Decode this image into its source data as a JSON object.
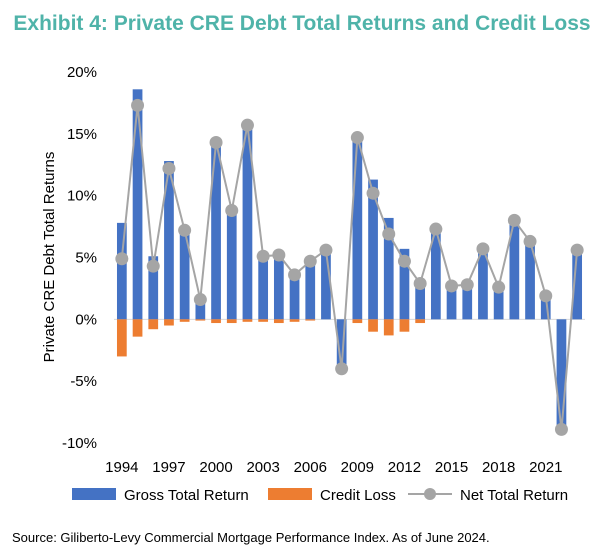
{
  "title": "Exhibit 4: Private CRE Debt Total Returns and Credit Loss",
  "source": "Source: Giliberto-Levy Commercial Mortgage Performance Index. As of June 2024.",
  "colors": {
    "gross": "#4472c4",
    "loss": "#ed7d31",
    "net": "#a5a5a5",
    "title": "#4fb3a9"
  },
  "chart_data": {
    "type": "bar",
    "title": "Exhibit 4: Private CRE Debt Total Returns and Credit Loss",
    "ylabel": "Private CRE Debt Total Returns",
    "xlabel": "",
    "ylim": [
      -10,
      20
    ],
    "yticks": [
      20,
      15,
      10,
      5,
      0,
      -5,
      -10
    ],
    "ytick_labels": [
      "20%",
      "15%",
      "10%",
      "5%",
      "0%",
      "-5%",
      "-10%"
    ],
    "xtick_labels": [
      "1994",
      "1997",
      "2000",
      "2003",
      "2006",
      "2009",
      "2012",
      "2015",
      "2018",
      "2021"
    ],
    "grid": false,
    "legend_position": "bottom",
    "categories": [
      "1994",
      "1995",
      "1996",
      "1997",
      "1998",
      "1999",
      "2000",
      "2001",
      "2002",
      "2003",
      "2004",
      "2005",
      "2006",
      "2007",
      "2008",
      "2009",
      "2010",
      "2011",
      "2012",
      "2013",
      "2014",
      "2015",
      "2016",
      "2017",
      "2018",
      "2019",
      "2020",
      "2021",
      "2022",
      "2023"
    ],
    "series": [
      {
        "name": "Gross Total Return",
        "kind": "bar",
        "values": [
          7.8,
          18.6,
          5.1,
          12.8,
          7.3,
          1.6,
          14.4,
          9.0,
          15.9,
          5.4,
          5.3,
          3.7,
          4.8,
          5.7,
          -4.0,
          15.0,
          11.3,
          8.2,
          5.7,
          2.9,
          7.4,
          2.8,
          2.9,
          5.7,
          2.6,
          8.0,
          6.3,
          1.9,
          -8.8,
          5.8
        ]
      },
      {
        "name": "Credit Loss",
        "kind": "bar",
        "values": [
          -3.0,
          -1.4,
          -0.8,
          -0.5,
          -0.2,
          -0.1,
          -0.3,
          -0.3,
          -0.2,
          -0.2,
          -0.3,
          -0.2,
          -0.1,
          0,
          0,
          -0.3,
          -1.0,
          -1.3,
          -1.0,
          -0.3,
          0,
          0,
          0,
          0,
          0,
          0,
          0,
          0,
          0,
          0
        ]
      },
      {
        "name": "Net Total Return",
        "kind": "line",
        "values": [
          4.9,
          17.3,
          4.3,
          12.2,
          7.2,
          1.6,
          14.3,
          8.8,
          15.7,
          5.1,
          5.2,
          3.6,
          4.7,
          5.6,
          -4.0,
          14.7,
          10.2,
          6.9,
          4.7,
          2.9,
          7.3,
          2.7,
          2.8,
          5.7,
          2.6,
          8.0,
          6.3,
          1.9,
          -8.9,
          5.6
        ]
      }
    ]
  }
}
